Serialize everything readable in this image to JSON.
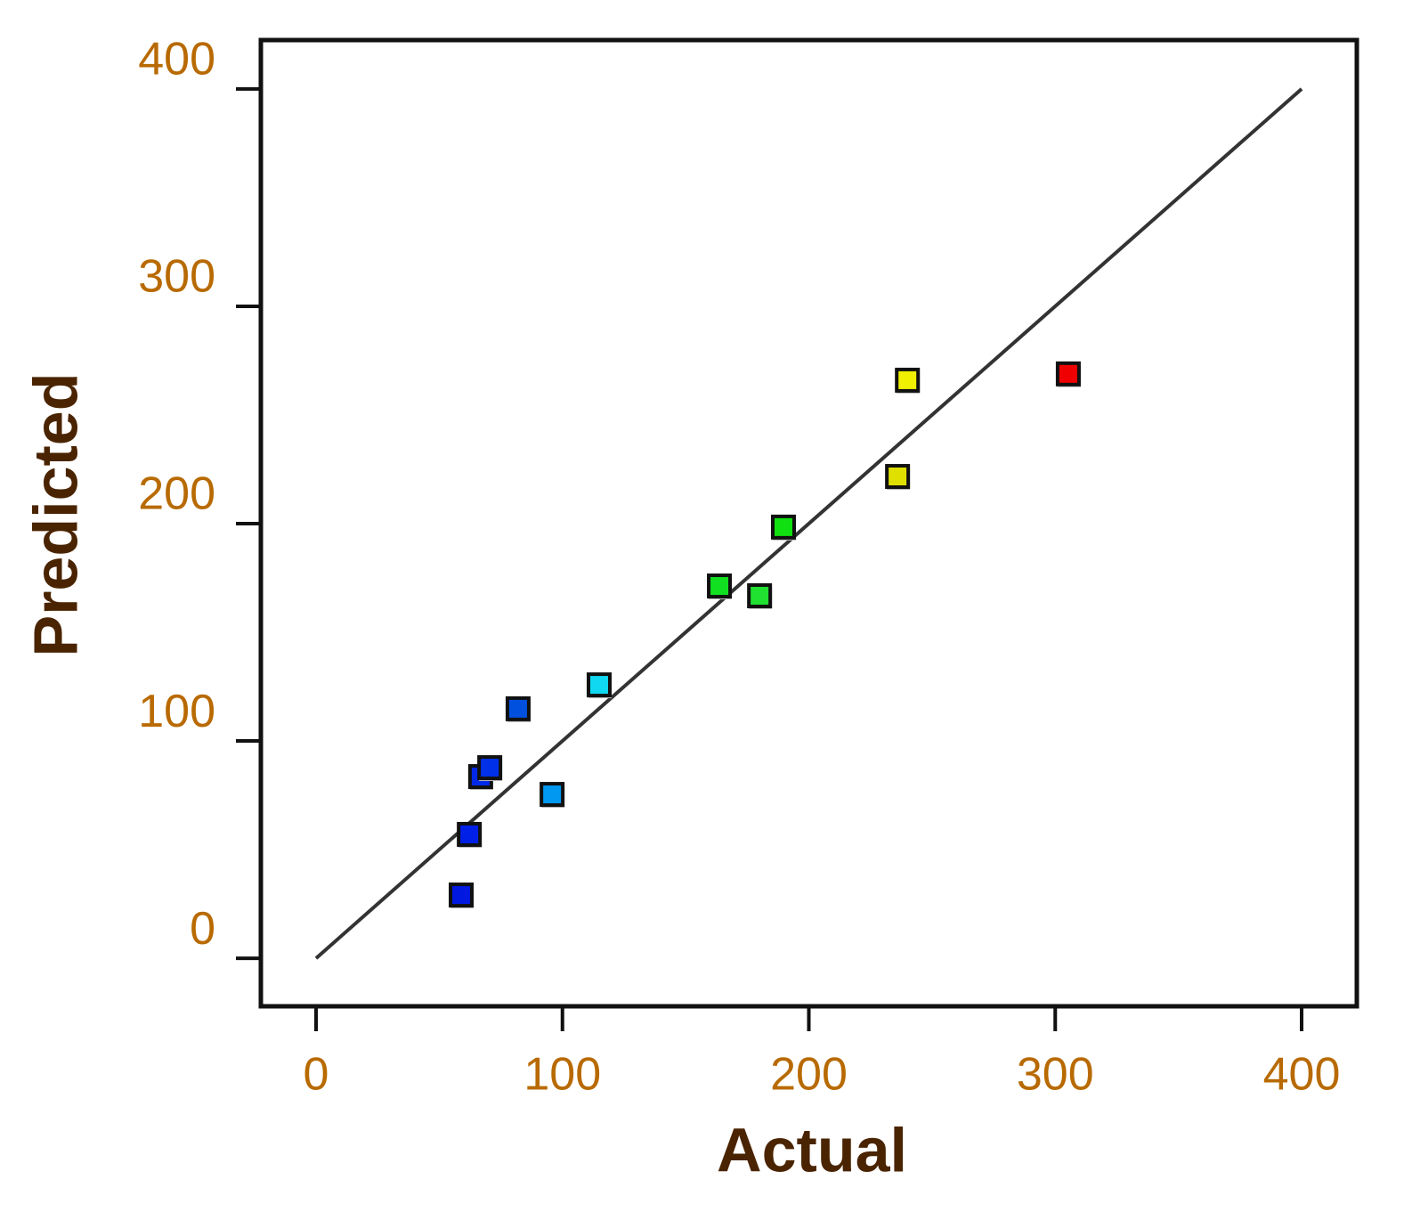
{
  "chart_data": {
    "type": "scatter",
    "x_label": "Actual",
    "y_label": "Predicted",
    "x": [
      58.9,
      62.2,
      66.8,
      70.5,
      82.0,
      95.8,
      114.9,
      163.7,
      180.0,
      189.7,
      236.0,
      240.0,
      305.3
    ],
    "values": [
      29.1,
      57.0,
      83.6,
      87.7,
      114.8,
      75.4,
      125.8,
      171.3,
      166.8,
      198.4,
      221.7,
      266.0,
      268.9
    ],
    "colors": [
      "#0018e0",
      "#0020e8",
      "#0028e8",
      "#0030e8",
      "#0050e0",
      "#0098f0",
      "#10d8f0",
      "#10e020",
      "#20e030",
      "#10e010",
      "#e0e000",
      "#f0f000",
      "#f00000"
    ],
    "diagonal": {
      "x": [
        0,
        400
      ],
      "y": [
        0,
        400
      ]
    },
    "xlim": [
      -22.4,
      422.4
    ],
    "ylim": [
      -22.1,
      422.5
    ],
    "xticks": [
      0,
      100,
      200,
      300,
      400
    ],
    "yticks": [
      0,
      100,
      200,
      300,
      400
    ]
  }
}
